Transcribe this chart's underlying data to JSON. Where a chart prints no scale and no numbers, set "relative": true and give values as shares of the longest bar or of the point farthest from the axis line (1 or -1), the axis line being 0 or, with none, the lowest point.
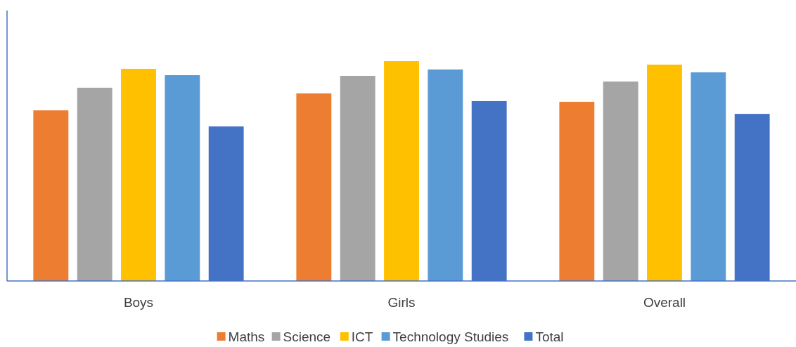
{
  "chart_data": {
    "type": "bar",
    "relative": true,
    "legend": "bottom",
    "categories": [
      "Boys",
      "Girls",
      "Overall"
    ],
    "series": [
      {
        "name": "Maths",
        "color": "#ed7d31",
        "values": [
          0.776,
          0.853,
          0.815
        ]
      },
      {
        "name": "Science",
        "color": "#a5a5a5",
        "values": [
          0.879,
          0.933,
          0.907
        ]
      },
      {
        "name": "ICT",
        "color": "#ffc000",
        "values": [
          0.965,
          1,
          0.984
        ]
      },
      {
        "name": "Technology Studies",
        "color": "#5b9bd5",
        "values": [
          0.936,
          0.962,
          0.949
        ]
      },
      {
        "name": "Total",
        "color": "#4472c4",
        "values": [
          0.703,
          0.818,
          0.76
        ]
      }
    ]
  }
}
